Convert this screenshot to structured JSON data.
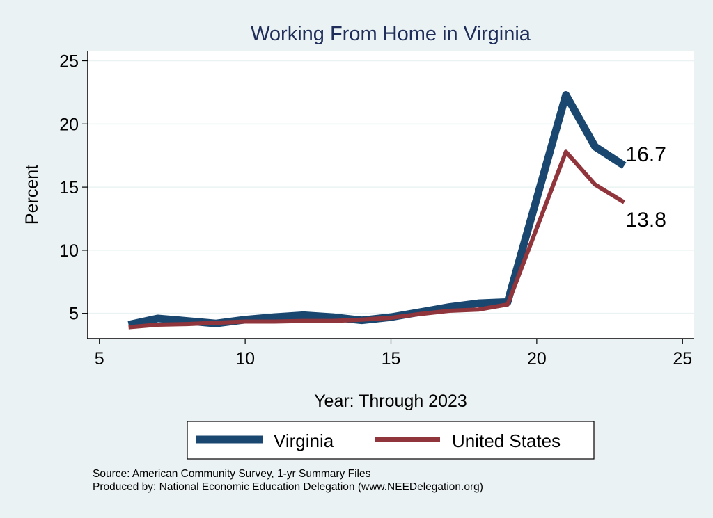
{
  "chart_data": {
    "type": "line",
    "title": "Working From Home in Virginia",
    "xlabel": "Year: Through 2023",
    "ylabel": "Percent",
    "xlim": [
      4.6,
      25.4
    ],
    "ylim": [
      3.0,
      25.8
    ],
    "xticks": [
      5,
      10,
      15,
      20,
      25
    ],
    "yticks": [
      5,
      10,
      15,
      20,
      25
    ],
    "grid": true,
    "legend_position": "bottom",
    "series": [
      {
        "name": "Virginia",
        "color": "#1a476f",
        "x": [
          6,
          7,
          8,
          9,
          10,
          11,
          12,
          13,
          14,
          15,
          16,
          17,
          18,
          19,
          21,
          22,
          23
        ],
        "y": [
          4.1,
          4.6,
          4.4,
          4.2,
          4.5,
          4.7,
          4.85,
          4.7,
          4.45,
          4.7,
          5.1,
          5.5,
          5.8,
          5.9,
          22.3,
          18.2,
          16.7
        ],
        "end_label": "16.7"
      },
      {
        "name": "United States",
        "color": "#90353b",
        "x": [
          6,
          7,
          8,
          9,
          10,
          11,
          12,
          13,
          14,
          15,
          16,
          17,
          18,
          19,
          21,
          22,
          23
        ],
        "y": [
          3.9,
          4.1,
          4.15,
          4.25,
          4.35,
          4.35,
          4.4,
          4.4,
          4.5,
          4.65,
          4.95,
          5.2,
          5.3,
          5.7,
          17.8,
          15.2,
          13.8
        ],
        "end_label": "13.8"
      }
    ]
  },
  "footer": {
    "source": "Source: American Community Survey, 1-yr Summary Files",
    "produced": "Produced by: National Economic Education Delegation (www.NEEDelegation.org)"
  }
}
